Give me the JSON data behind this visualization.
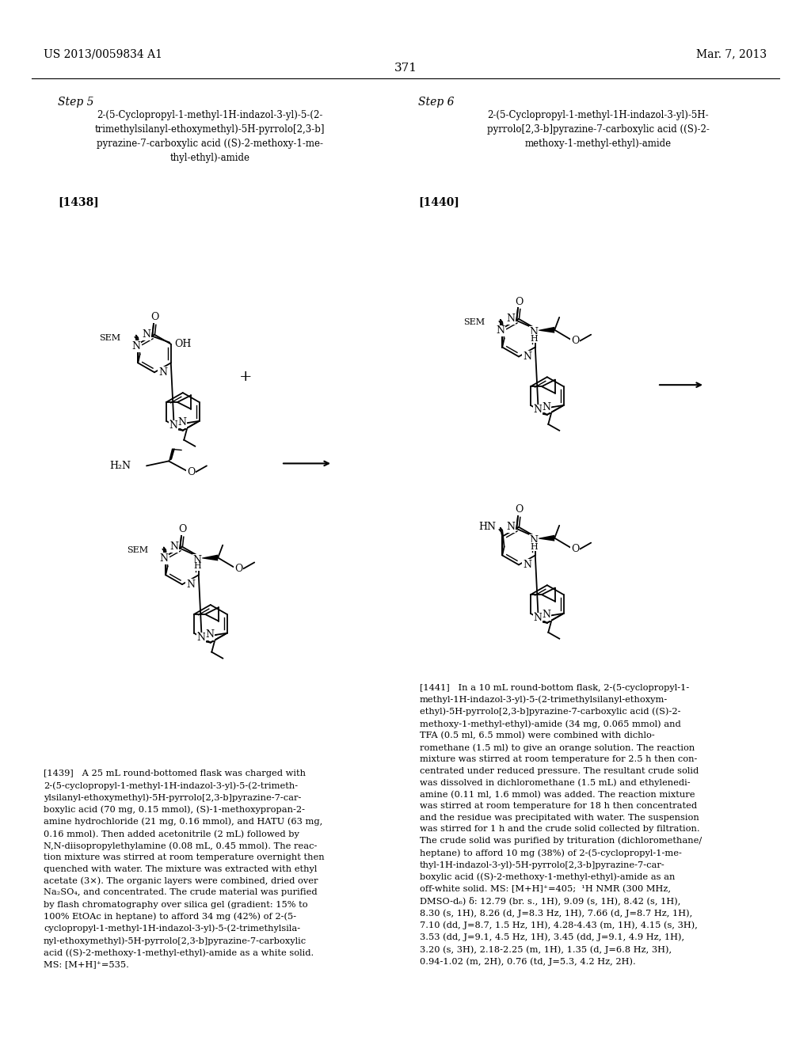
{
  "bg": "#ffffff",
  "patent_num": "US 2013/0059834 A1",
  "patent_date": "Mar. 7, 2013",
  "page_num": "371",
  "step5": "Step 5",
  "step6": "Step 6",
  "title5": "2-(5-Cyclopropyl-1-methyl-1H-indazol-3-yl)-5-(2-\ntrimethylsilanyl-ethoxymethyl)-5H-pyrrolo[2,3-b]\npyrazine-7-carboxylic acid ((S)-2-methoxy-1-me-\nthyl-ethyl)-amide",
  "title6": "2-(5-Cyclopropyl-1-methyl-1H-indazol-3-yl)-5H-\npyrrolo[2,3-b]pyrazine-7-carboxylic acid ((S)-2-\nmethoxy-1-methyl-ethyl)-amide",
  "lbl1438": "[1438]",
  "lbl1439": "[1439]",
  "lbl1440": "[1440]",
  "lbl1441": "[1441]",
  "text1439": "[1439]   A 25 mL round-bottomed flask was charged with\n2-(5-cyclopropyl-1-methyl-1H-indazol-3-yl)-5-(2-trimeth-\nylsilanyl-ethoxymethyl)-5H-pyrrolo[2,3-b]pyrazine-7-car-\nboxylic acid (70 mg, 0.15 mmol), (S)-1-methoxypropan-2-\namine hydrochloride (21 mg, 0.16 mmol), and HATU (63 mg,\n0.16 mmol). Then added acetonitrile (2 mL) followed by\nN,N-diisopropylethylamine (0.08 mL, 0.45 mmol). The reac-\ntion mixture was stirred at room temperature overnight then\nquenched with water. The mixture was extracted with ethyl\nacetate (3×). The organic layers were combined, dried over\nNa₂SO₄, and concentrated. The crude material was purified\nby flash chromatography over silica gel (gradient: 15% to\n100% EtOAc in heptane) to afford 34 mg (42%) of 2-(5-\ncyclopropyl-1-methyl-1H-indazol-3-yl)-5-(2-trimethylsila-\nnyl-ethoxymethyl)-5H-pyrrolo[2,3-b]pyrazine-7-carboxylic\nacid ((S)-2-methoxy-1-methyl-ethyl)-amide as a white solid.\nMS: [M+H]⁺=535.",
  "text1441": "[1441]   In a 10 mL round-bottom flask, 2-(5-cyclopropyl-1-\nmethyl-1H-indazol-3-yl)-5-(2-trimethylsilanyl-ethoxym-\nethyl)-5H-pyrrolo[2,3-b]pyrazine-7-carboxylic acid ((S)-2-\nmethoxy-1-methyl-ethyl)-amide (34 mg, 0.065 mmol) and\nTFA (0.5 ml, 6.5 mmol) were combined with dichlo-\nromethane (1.5 ml) to give an orange solution. The reaction\nmixture was stirred at room temperature for 2.5 h then con-\ncentrated under reduced pressure. The resultant crude solid\nwas dissolved in dichloromethane (1.5 mL) and ethylenedi-\namine (0.11 ml, 1.6 mmol) was added. The reaction mixture\nwas stirred at room temperature for 18 h then concentrated\nand the residue was precipitated with water. The suspension\nwas stirred for 1 h and the crude solid collected by filtration.\nThe crude solid was purified by trituration (dichloromethane/\nheptane) to afford 10 mg (38%) of 2-(5-cyclopropyl-1-me-\nthyl-1H-indazol-3-yl)-5H-pyrrolo[2,3-b]pyrazine-7-car-\nboxylic acid ((S)-2-methoxy-1-methyl-ethyl)-amide as an\noff-white solid. MS: [M+H]⁺=405;  ¹H NMR (300 MHz,\nDMSO-d₆) δ: 12.79 (br. s., 1H), 9.09 (s, 1H), 8.42 (s, 1H),\n8.30 (s, 1H), 8.26 (d, J=8.3 Hz, 1H), 7.66 (d, J=8.7 Hz, 1H),\n7.10 (dd, J=8.7, 1.5 Hz, 1H), 4.28-4.43 (m, 1H), 4.15 (s, 3H),\n3.53 (dd, J=9.1, 4.5 Hz, 1H), 3.45 (dd, J=9.1, 4.9 Hz, 1H),\n3.20 (s, 3H), 2.18-2.25 (m, 1H), 1.35 (d, J=6.8 Hz, 3H),\n0.94-1.02 (m, 2H), 0.76 (td, J=5.3, 4.2 Hz, 2H)."
}
